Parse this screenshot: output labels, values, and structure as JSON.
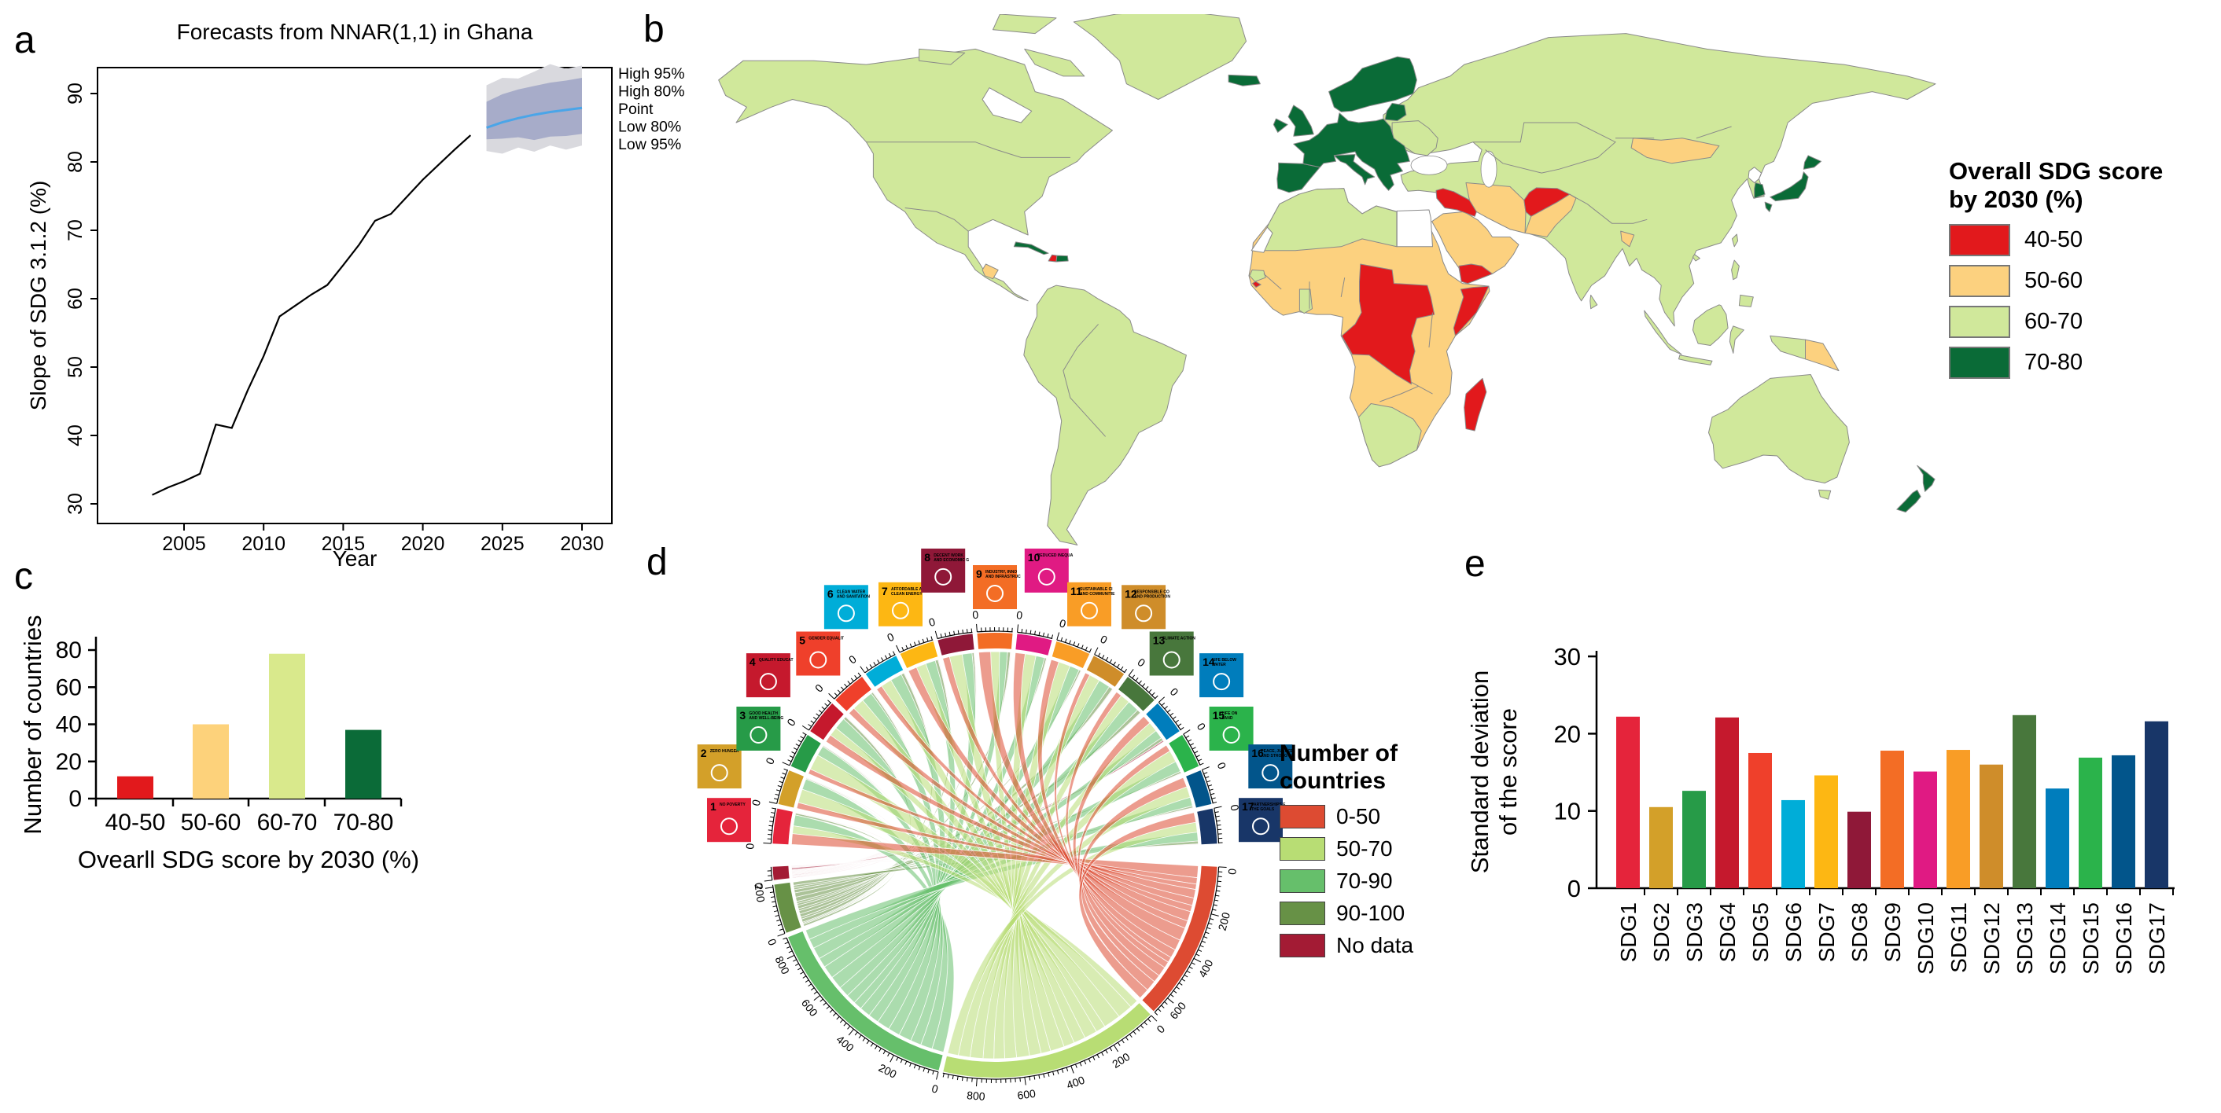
{
  "figure_labels": {
    "a": "a",
    "b": "b",
    "c": "c",
    "d": "d",
    "e": "e"
  },
  "panel_a": {
    "title": "Forecasts from NNAR(1,1) in Ghana",
    "ylabel": "Slope of SDG 3.1.2 (%)",
    "xlabel": "Year",
    "legend": [
      "High 95%",
      "High 80%",
      "Point",
      "Low 80%",
      "Low 95%"
    ]
  },
  "panel_b": {
    "legend_title": [
      "Overall SDG score",
      "by 2030 (%)"
    ],
    "legend": [
      {
        "label": "40-50",
        "color": "#e2191c"
      },
      {
        "label": "50-60",
        "color": "#fcd17f"
      },
      {
        "label": "60-70",
        "color": "#d0e89b"
      },
      {
        "label": "70-80",
        "color": "#0a6b37"
      }
    ]
  },
  "panel_c": {
    "ylabel": "Number of countries",
    "xlabel": "Ovearll SDG score by 2030 (%)"
  },
  "panel_d": {
    "legend_title": [
      "Number of",
      "countries"
    ],
    "legend": [
      {
        "label": "0-50",
        "color": "#dd4b32"
      },
      {
        "label": "50-70",
        "color": "#b8dd74"
      },
      {
        "label": "70-90",
        "color": "#66bf6b"
      },
      {
        "label": "90-100",
        "color": "#679146"
      },
      {
        "label": "No data",
        "color": "#a31b34"
      }
    ]
  },
  "panel_e": {
    "ylabel_lines": [
      "Standard deviation",
      "of the score"
    ]
  },
  "sdg": {
    "colors": [
      "#e5243b",
      "#d3a029",
      "#279b48",
      "#c5192d",
      "#ef402b",
      "#00add8",
      "#fdb713",
      "#8f1838",
      "#f36d25",
      "#e01a83",
      "#f99d26",
      "#cf8d2a",
      "#48773c",
      "#007dbc",
      "#2bb34b",
      "#02558b",
      "#183668"
    ],
    "names": [
      "No poverty",
      "Zero hunger",
      "Good health and well-being",
      "Quality education",
      "Gender equality",
      "Clean water and sanitation",
      "Affordable and clean energy",
      "Decent work and economic growth",
      "Industry, innovation and infrastructure",
      "Reduced inequalities",
      "Sustainable cities and communities",
      "Responsible consumption and production",
      "Climate action",
      "Life below water",
      "Life on land",
      "Peace, justice and strong institutions",
      "Partnerships for the goals"
    ]
  },
  "chart_data": [
    {
      "id": "panel_a_forecast",
      "type": "line",
      "title": "Forecasts from NNAR(1,1) in Ghana",
      "xlabel": "Year",
      "ylabel": "Slope of SDG 3.1.2 (%)",
      "xticks": [
        2005,
        2010,
        2015,
        2020,
        2025,
        2030
      ],
      "yticks": [
        30,
        40,
        50,
        60,
        70,
        80,
        90
      ],
      "ylim": [
        27,
        94
      ],
      "history": {
        "x": [
          2003,
          2004,
          2005,
          2006,
          2007,
          2008,
          2009,
          2010,
          2011,
          2012,
          2013,
          2014,
          2015,
          2016,
          2017,
          2018,
          2019,
          2020,
          2021,
          2022,
          2023
        ],
        "y": [
          31.3,
          32.4,
          33.3,
          34.4,
          41.6,
          41.1,
          46.6,
          51.6,
          57.4,
          59.0,
          60.6,
          62.0,
          64.9,
          67.9,
          71.4,
          72.4,
          74.9,
          77.4,
          79.6,
          81.8,
          83.9
        ]
      },
      "forecast": {
        "x": [
          2024,
          2025,
          2026,
          2027,
          2028,
          2029,
          2030
        ],
        "point": [
          85.0,
          85.8,
          86.4,
          86.9,
          87.3,
          87.6,
          87.9
        ],
        "hi80": [
          88.8,
          89.9,
          90.6,
          91.1,
          91.6,
          91.9,
          92.3
        ],
        "lo80": [
          83.3,
          83.4,
          83.6,
          83.2,
          83.7,
          83.8,
          84.1
        ],
        "hi95": [
          91.2,
          92.3,
          92.2,
          93.2,
          94.3,
          93.6,
          94.1
        ],
        "lo95": [
          81.6,
          81.2,
          82.1,
          81.5,
          82.4,
          81.8,
          82.4
        ]
      },
      "legend": [
        "High 95%",
        "High 80%",
        "Point",
        "Low 80%",
        "Low 95%"
      ],
      "colors": {
        "history": "#000000",
        "point": "#4aa5e8",
        "band80": "#a7acc9",
        "band95": "#d9d9de"
      }
    },
    {
      "id": "panel_b_world_map",
      "type": "heatmap",
      "legend_title": "Overall SDG score by 2030 (%)",
      "classes": [
        "40-50",
        "50-60",
        "60-70",
        "70-80"
      ],
      "class_colors": {
        "40-50": "#e2191c",
        "50-60": "#fcd17f",
        "60-70": "#d0e89b",
        "70-80": "#0a6b37",
        "nodata": "#ffffff",
        "water": "#ffffff"
      },
      "border_color": "#8a8a8a",
      "regions": {
        "north-america": "60-70",
        "baffin": "60-70",
        "victoria": "60-70",
        "ellesmere": "60-70",
        "greenland": "60-70",
        "guatemala": "50-60",
        "cuba": "70-80",
        "haiti": "40-50",
        "dominican-republic": "70-80",
        "south-america": "60-70",
        "iceland": "70-80",
        "united-kingdom": "70-80",
        "ireland": "70-80",
        "iberia": "70-80",
        "europe-central": "70-80",
        "italy": "70-80",
        "scandinavia": "70-80",
        "baltics": "70-80",
        "ukraine-belarus": "60-70",
        "eurasia": "60-70",
        "sri-lanka": "60-70",
        "bangladesh": "50-60",
        "mongolia": "50-60",
        "north-korea": "nodata",
        "south-korea": "70-80",
        "japan-honshu": "70-80",
        "japan-hokkaido": "70-80",
        "japan-kyushu": "70-80",
        "taiwan": "60-70",
        "luzon": "60-70",
        "mindanao": "60-70",
        "hainan": "60-70",
        "sumatra": "60-70",
        "java": "60-70",
        "borneo": "60-70",
        "sulawesi": "60-70",
        "new-guinea-west": "60-70",
        "papua-new-guinea": "50-60",
        "australia": "60-70",
        "tasmania": "60-70",
        "nz-north": "70-80",
        "nz-south": "70-80",
        "africa": "50-60",
        "maghreb": "60-70",
        "western-sahara": "nodata",
        "egypt": "nodata",
        "central-africa": "40-50",
        "somalia": "40-50",
        "southern-africa": "60-70",
        "senegal": "60-70",
        "guinea-bissau": "40-50",
        "ghana": "60-70",
        "madagascar": "40-50",
        "arabia": "50-60",
        "yemen": "40-50",
        "iraq-syria": "40-50",
        "iran": "50-60",
        "afghanistan": "40-50",
        "pakistan": "50-60",
        "hudson-bay": "water",
        "caspian-sea": "water",
        "black-sea": "water"
      }
    },
    {
      "id": "panel_c_histogram",
      "type": "bar",
      "categories": [
        "40-50",
        "50-60",
        "60-70",
        "70-80"
      ],
      "values": [
        12,
        40,
        78,
        37
      ],
      "colors": [
        "#e2191c",
        "#fdd27b",
        "#d9e98c",
        "#0b6b38"
      ],
      "title": "",
      "xlabel": "Ovearll SDG score by 2030 (%)",
      "ylabel": "Number of countries",
      "ylim": [
        0,
        86
      ],
      "yticks": [
        0,
        20,
        40,
        60,
        80
      ]
    },
    {
      "id": "panel_d_chord",
      "type": "table",
      "description": "Chord diagram: number of countries per SDG score class for each SDG",
      "rows": [
        "SDG1",
        "SDG2",
        "SDG3",
        "SDG4",
        "SDG5",
        "SDG6",
        "SDG7",
        "SDG8",
        "SDG9",
        "SDG10",
        "SDG11",
        "SDG12",
        "SDG13",
        "SDG14",
        "SDG15",
        "SDG16",
        "SDG17"
      ],
      "cols": [
        "0-50",
        "50-70",
        "70-90",
        "90-100",
        "No data"
      ],
      "col_colors": [
        "#dd4b32",
        "#b8dd74",
        "#66bf6b",
        "#679146",
        "#a31b34"
      ],
      "matrix": [
        [
          55,
          40,
          55,
          10,
          3
        ],
        [
          30,
          70,
          55,
          5,
          3
        ],
        [
          25,
          80,
          50,
          5,
          3
        ],
        [
          40,
          45,
          60,
          15,
          3
        ],
        [
          35,
          60,
          55,
          10,
          3
        ],
        [
          30,
          55,
          60,
          15,
          3
        ],
        [
          45,
          50,
          50,
          15,
          3
        ],
        [
          35,
          65,
          50,
          10,
          3
        ],
        [
          60,
          45,
          40,
          15,
          3
        ],
        [
          50,
          55,
          45,
          10,
          3
        ],
        [
          40,
          60,
          50,
          10,
          3
        ],
        [
          25,
          55,
          60,
          20,
          3
        ],
        [
          30,
          50,
          60,
          20,
          3
        ],
        [
          45,
          50,
          45,
          15,
          8
        ],
        [
          35,
          60,
          55,
          10,
          3
        ],
        [
          50,
          55,
          45,
          10,
          3
        ],
        [
          50,
          50,
          45,
          15,
          3
        ]
      ],
      "minor_tick": 20,
      "major_tick": 200
    },
    {
      "id": "panel_e_sd",
      "type": "bar",
      "categories": [
        "SDG1",
        "SDG2",
        "SDG3",
        "SDG4",
        "SDG5",
        "SDG6",
        "SDG7",
        "SDG8",
        "SDG9",
        "SDG10",
        "SDG11",
        "SDG12",
        "SDG13",
        "SDG14",
        "SDG15",
        "SDG16",
        "SDG17"
      ],
      "values": [
        22.2,
        10.5,
        12.6,
        22.1,
        17.5,
        11.4,
        14.6,
        9.9,
        17.8,
        15.1,
        17.9,
        16.0,
        22.4,
        12.9,
        16.9,
        17.2,
        21.6
      ],
      "ylabel": "Standard deviation of the score",
      "yticks": [
        0,
        10,
        20,
        30
      ],
      "ylim": [
        0,
        30
      ]
    }
  ]
}
